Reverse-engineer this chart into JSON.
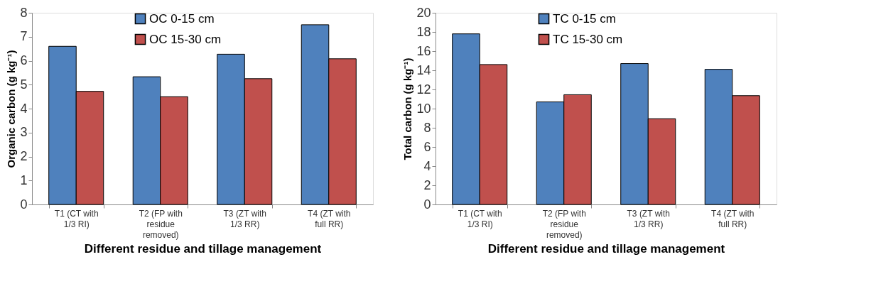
{
  "chart_data": [
    {
      "type": "bar",
      "categories": [
        "T1 (CT with 1/3 RI)",
        "T2 (FP with residue removed)",
        "T3 (ZT with 1/3 RR)",
        "T4 (ZT with full RR)"
      ],
      "xlabel": "Different residue and tillage management",
      "ylabel": "Organic carbon (g kg⁻¹)",
      "ylim": [
        0,
        8
      ],
      "yticks": [
        0,
        1,
        2,
        3,
        4,
        5,
        6,
        7,
        8
      ],
      "grid": false,
      "legend": "top",
      "series": [
        {
          "name": "OC 0-15 cm",
          "color": "#4f81bd",
          "values": [
            6.6,
            5.33,
            6.27,
            7.5
          ]
        },
        {
          "name": "OC 15-30 cm",
          "color": "#c0504d",
          "values": [
            4.72,
            4.5,
            5.25,
            6.08
          ]
        }
      ]
    },
    {
      "type": "bar",
      "categories": [
        "T1 (CT with 1/3 RI)",
        "T2 (FP with residue removed)",
        "T3 (ZT with 1/3 RR)",
        "T4 (ZT with full RR)"
      ],
      "xlabel": "Different residue and tillage management",
      "ylabel": "Total carbon (g kg⁻¹)",
      "ylim": [
        0,
        20
      ],
      "yticks": [
        0,
        2,
        4,
        6,
        8,
        10,
        12,
        14,
        16,
        18,
        20
      ],
      "grid": false,
      "legend": "top",
      "series": [
        {
          "name": "TC 0-15 cm",
          "color": "#4f81bd",
          "values": [
            17.8,
            10.7,
            14.7,
            14.1
          ]
        },
        {
          "name": "TC 15-30 cm",
          "color": "#c0504d",
          "values": [
            14.6,
            11.45,
            8.95,
            11.35
          ]
        }
      ]
    }
  ]
}
